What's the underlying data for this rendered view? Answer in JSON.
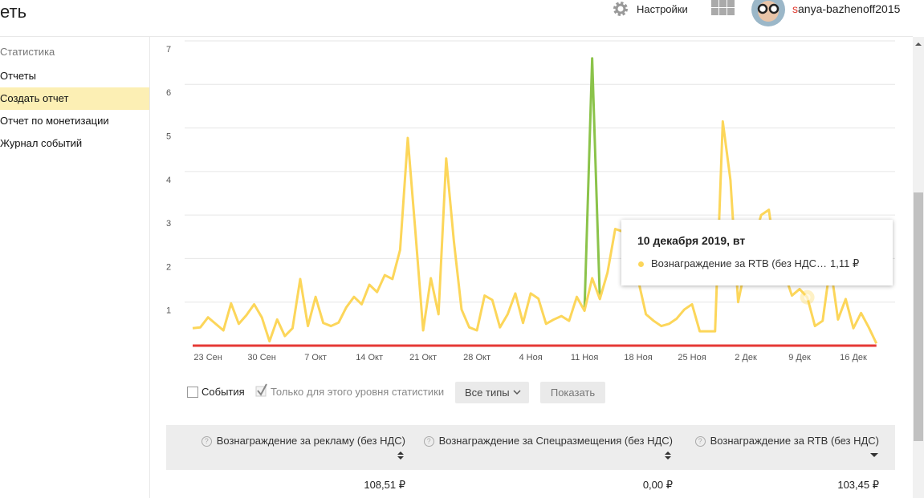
{
  "header": {
    "logo": "еть",
    "settings": "Настройки",
    "user": "sanya-bazhenoff2015"
  },
  "sidebar": {
    "title": "Статистика",
    "items": [
      "Отчеты",
      "Создать отчет",
      "Отчет по монетизации",
      "Журнал событий"
    ],
    "active": 1
  },
  "chart_data": {
    "type": "line",
    "categories": [
      null,
      null,
      "23 Сен",
      null,
      null,
      null,
      null,
      null,
      null,
      "30 Сен",
      null,
      null,
      null,
      null,
      null,
      null,
      "7 Окт",
      null,
      null,
      null,
      null,
      null,
      null,
      "14 Окт",
      null,
      null,
      null,
      null,
      null,
      null,
      "21 Окт",
      null,
      null,
      null,
      null,
      null,
      null,
      "28 Окт",
      null,
      null,
      null,
      null,
      null,
      null,
      "4 Ноя",
      null,
      null,
      null,
      null,
      null,
      null,
      "11 Ноя",
      null,
      null,
      null,
      null,
      null,
      null,
      "18 Ноя",
      null,
      null,
      null,
      null,
      null,
      null,
      "25 Ноя",
      null,
      null,
      null,
      null,
      null,
      null,
      "2 Дек",
      null,
      null,
      null,
      null,
      null,
      null,
      "9 Дек",
      null,
      null,
      null,
      null,
      null,
      null,
      "16 Дек",
      null,
      null,
      null
    ],
    "series": [
      {
        "color": "#fcd65a",
        "values": [
          0.4,
          0.42,
          0.65,
          0.5,
          0.35,
          0.97,
          0.5,
          0.7,
          0.95,
          0.65,
          0.1,
          0.6,
          0.22,
          0.4,
          1.53,
          0.45,
          1.12,
          0.52,
          0.45,
          0.53,
          0.88,
          1.12,
          0.95,
          1.4,
          1.23,
          1.62,
          1.53,
          2.2,
          4.77,
          2.6,
          0.35,
          1.55,
          0.72,
          4.3,
          2.4,
          0.83,
          0.42,
          0.35,
          1.15,
          1.05,
          0.42,
          0.72,
          1.2,
          0.52,
          1.2,
          1.08,
          0.5,
          0.6,
          0.68,
          0.57,
          1.12,
          0.8,
          1.55,
          1.07,
          1.68,
          2.68,
          2.62,
          2.4,
          1.5,
          0.72,
          0.57,
          0.45,
          0.5,
          0.62,
          0.83,
          0.95,
          0.33,
          0.33,
          0.33,
          5.15,
          3.8,
          1.0,
          1.85,
          2.4,
          3.0,
          3.12,
          1.85,
          1.68,
          1.15,
          1.3,
          1.11,
          0.45,
          0.57,
          1.85,
          0.6,
          1.07,
          0.4,
          0.75,
          0.42,
          0.05
        ]
      },
      {
        "color": "#8bc34a",
        "values": [
          null,
          null,
          null,
          null,
          null,
          null,
          null,
          null,
          null,
          null,
          null,
          null,
          null,
          null,
          null,
          null,
          null,
          null,
          null,
          null,
          null,
          null,
          null,
          null,
          null,
          null,
          null,
          null,
          null,
          null,
          null,
          null,
          null,
          null,
          null,
          null,
          null,
          null,
          null,
          null,
          null,
          null,
          null,
          null,
          null,
          null,
          null,
          null,
          null,
          null,
          null,
          0.8,
          6.6,
          1.07,
          null,
          null,
          null,
          null,
          null,
          null,
          null,
          null,
          null,
          null,
          null,
          null,
          null,
          null,
          null,
          null,
          null,
          null,
          null,
          null,
          null,
          null,
          null,
          null,
          null,
          null,
          null,
          null,
          null,
          null,
          null,
          null,
          null,
          null,
          null,
          null
        ]
      },
      {
        "color": "#e53935",
        "values": [
          0,
          0,
          0,
          0,
          0,
          0,
          0,
          0,
          0,
          0,
          0,
          0,
          0,
          0,
          0,
          0,
          0,
          0,
          0,
          0,
          0,
          0,
          0,
          0,
          0,
          0,
          0,
          0,
          0,
          0,
          0,
          0,
          0,
          0,
          0,
          0,
          0,
          0,
          0,
          0,
          0,
          0,
          0,
          0,
          0,
          0,
          0,
          0,
          0,
          0,
          0,
          0,
          0,
          0,
          0,
          0,
          0,
          0,
          0,
          0,
          0,
          0,
          0,
          0,
          0,
          0,
          0,
          0,
          0,
          0,
          0,
          0,
          0,
          0,
          0,
          0,
          0,
          0,
          0,
          0,
          0,
          0,
          0,
          0,
          0,
          0,
          0,
          0,
          0,
          0
        ]
      }
    ],
    "ylim": [
      0,
      7
    ],
    "yticks": [
      1,
      2,
      3,
      4,
      5,
      6,
      7
    ],
    "grid": true,
    "highlight": 80
  },
  "tooltip": {
    "date": "10 декабря 2019, вт",
    "label": "Вознаграждение за RTB (без НДС), ₽",
    "value": "1,11 ₽"
  },
  "controls": {
    "events": "События",
    "level_only": "Только для этого уровня статистики",
    "types": "Все типы",
    "show": "Показать"
  },
  "table": {
    "headers": [
      "Вознаграждение за рекламу (без НДС)",
      "Вознаграждение за Спецразмещения (без НДС)",
      "Вознаграждение за RTB (без НДС)"
    ],
    "rows": [
      [
        "108,51 ₽",
        "0,00 ₽",
        "103,45 ₽"
      ]
    ]
  }
}
